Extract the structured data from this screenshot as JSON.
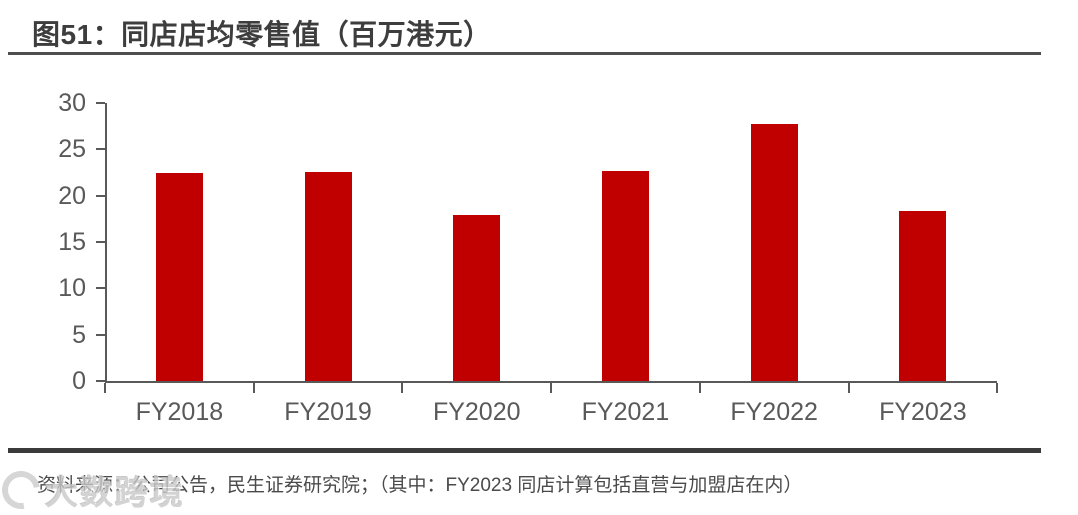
{
  "header": {
    "title": "图51：同店店均零售值（百万港元）"
  },
  "chart_data": {
    "type": "bar",
    "title": "同店店均零售值（百万港元）",
    "categories": [
      "FY2018",
      "FY2019",
      "FY2020",
      "FY2021",
      "FY2022",
      "FY2023"
    ],
    "values": [
      22.5,
      22.6,
      17.9,
      22.7,
      27.7,
      18.3
    ],
    "xlabel": "",
    "ylabel": "",
    "ylim": [
      0,
      30
    ],
    "yticks": [
      0,
      5,
      10,
      15,
      20,
      25,
      30
    ],
    "bar_color": "#c00000",
    "axis_color": "#595959",
    "tick_label_color": "#595959",
    "grid": false,
    "legend": false
  },
  "footer": {
    "source_text": "资料来源：公司公告，民生证券研究院；（其中：FY2023 同店计算包括直营与加盟店在内）"
  },
  "watermark": {
    "text": "大数跨境"
  }
}
